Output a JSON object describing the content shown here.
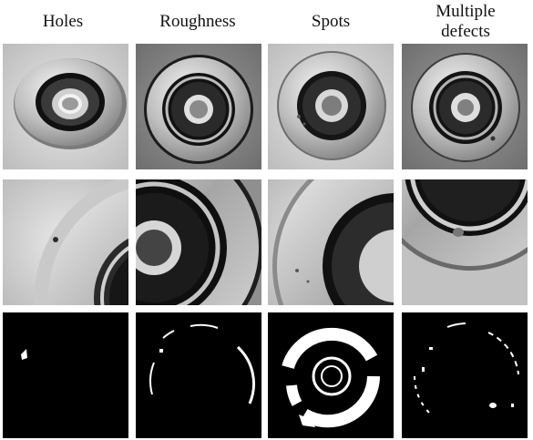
{
  "figure": {
    "columns": [
      {
        "id": "holes",
        "title": "Holes"
      },
      {
        "id": "roughness",
        "title": "Roughness"
      },
      {
        "id": "spots",
        "title": "Spots"
      },
      {
        "id": "multiple",
        "title": "Multiple\ndefects"
      }
    ],
    "rows": [
      {
        "id": "full-part",
        "content": "photograph"
      },
      {
        "id": "zoomed-region",
        "content": "photograph"
      },
      {
        "id": "defect-mask",
        "content": "binary-mask"
      }
    ],
    "colors": {
      "background": "#ffffff",
      "mask_background": "#000000",
      "mask_foreground": "#ffffff",
      "metal_light": "#e6e6e6",
      "metal_mid": "#9a9a9a",
      "metal_dark": "#1e1e1e"
    }
  }
}
